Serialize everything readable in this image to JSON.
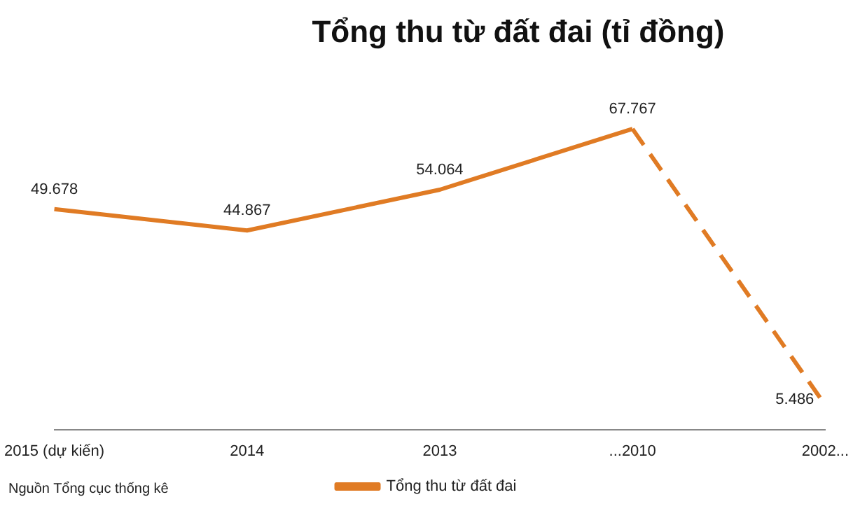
{
  "chart_data": {
    "type": "line",
    "title": "Tổng thu từ đất đai (tỉ đồng)",
    "categories": [
      "2015 (dự kiến)",
      "2014",
      "2013",
      "...2010",
      "2002..."
    ],
    "series": [
      {
        "name": "Tổng thu từ đất đai",
        "color": "#e07b24",
        "values": [
          49678,
          44867,
          54064,
          67767,
          null
        ],
        "value_labels": [
          "49.678",
          "44.867",
          "54.064",
          "67.767",
          null
        ],
        "line_style": "solid"
      },
      {
        "color": "#e07b24",
        "values": [
          null,
          null,
          null,
          67767,
          5486
        ],
        "value_labels": [
          null,
          null,
          null,
          null,
          "5.486"
        ],
        "line_style": "dashed"
      }
    ],
    "legend": "bottom",
    "marker": "none",
    "grid": false,
    "annotations": [
      "Nguồn Tổng cục thống kê"
    ]
  }
}
